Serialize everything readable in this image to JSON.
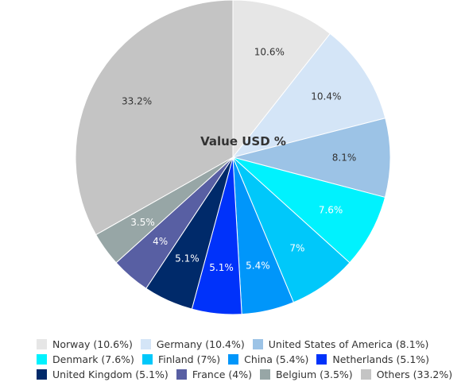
{
  "chart_data": {
    "type": "pie",
    "title": "Value USD %",
    "categories": [
      "Norway",
      "Germany",
      "United States of America",
      "Denmark",
      "Finland",
      "China",
      "Netherlands",
      "United Kingdom",
      "France",
      "Belgium",
      "Others"
    ],
    "values": [
      10.6,
      10.4,
      8.1,
      7.6,
      7,
      5.4,
      5.1,
      5.1,
      4,
      3.5,
      33.2
    ],
    "data_labels": [
      "10.6%",
      "10.4%",
      "8.1%",
      "7.6%",
      "7%",
      "5.4%",
      "5.1%",
      "5.1%",
      "4%",
      "3.5%",
      "33.2%"
    ],
    "colors": [
      "#e6e6e6",
      "#d4e5f7",
      "#9cc3e6",
      "#00f2fe",
      "#00c8fa",
      "#0096fa",
      "#0032fa",
      "#002a6a",
      "#585fa3",
      "#97a6a6",
      "#c4c4c4"
    ],
    "label_colors": [
      "#333333",
      "#333333",
      "#333333",
      "#ffffff",
      "#ffffff",
      "#ffffff",
      "#ffffff",
      "#ffffff",
      "#ffffff",
      "#ffffff",
      "#333333"
    ],
    "legend_position": "bottom",
    "legend": [
      [
        "Norway (10.6%)",
        "Germany (10.4%)",
        "United States of America (8.1%)"
      ],
      [
        "Denmark (7.6%)",
        "Finland (7%)",
        "China (5.4%)",
        "Netherlands (5.1%)"
      ],
      [
        "United Kingdom (5.1%)",
        "France (4%)",
        "Belgium (3.5%)",
        "Others (33.2%)"
      ]
    ]
  }
}
